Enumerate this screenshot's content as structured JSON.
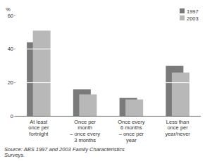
{
  "chart_data": {
    "type": "bar",
    "ylabel": "%",
    "categories": [
      "At least\nonce per\nfortnight",
      "Once per\nmonth\n– once every\n3 months",
      "Once every\n6 months\n– once per\nyear",
      "Less than\nonce per\nyear/never"
    ],
    "series": [
      {
        "name": "1997",
        "color": "#7a7a7a",
        "values": [
          44,
          16,
          11,
          30
        ]
      },
      {
        "name": "2003",
        "color": "#b8b8b8",
        "values": [
          51,
          13,
          10,
          26
        ]
      }
    ],
    "ylim": [
      0,
      60
    ],
    "yticks": [
      0,
      20,
      40,
      60
    ],
    "grid": true,
    "legend": "upper right",
    "annotations": [
      "Source: ABS 1997 and 2003 Family Characteristics\nSurveys."
    ]
  }
}
